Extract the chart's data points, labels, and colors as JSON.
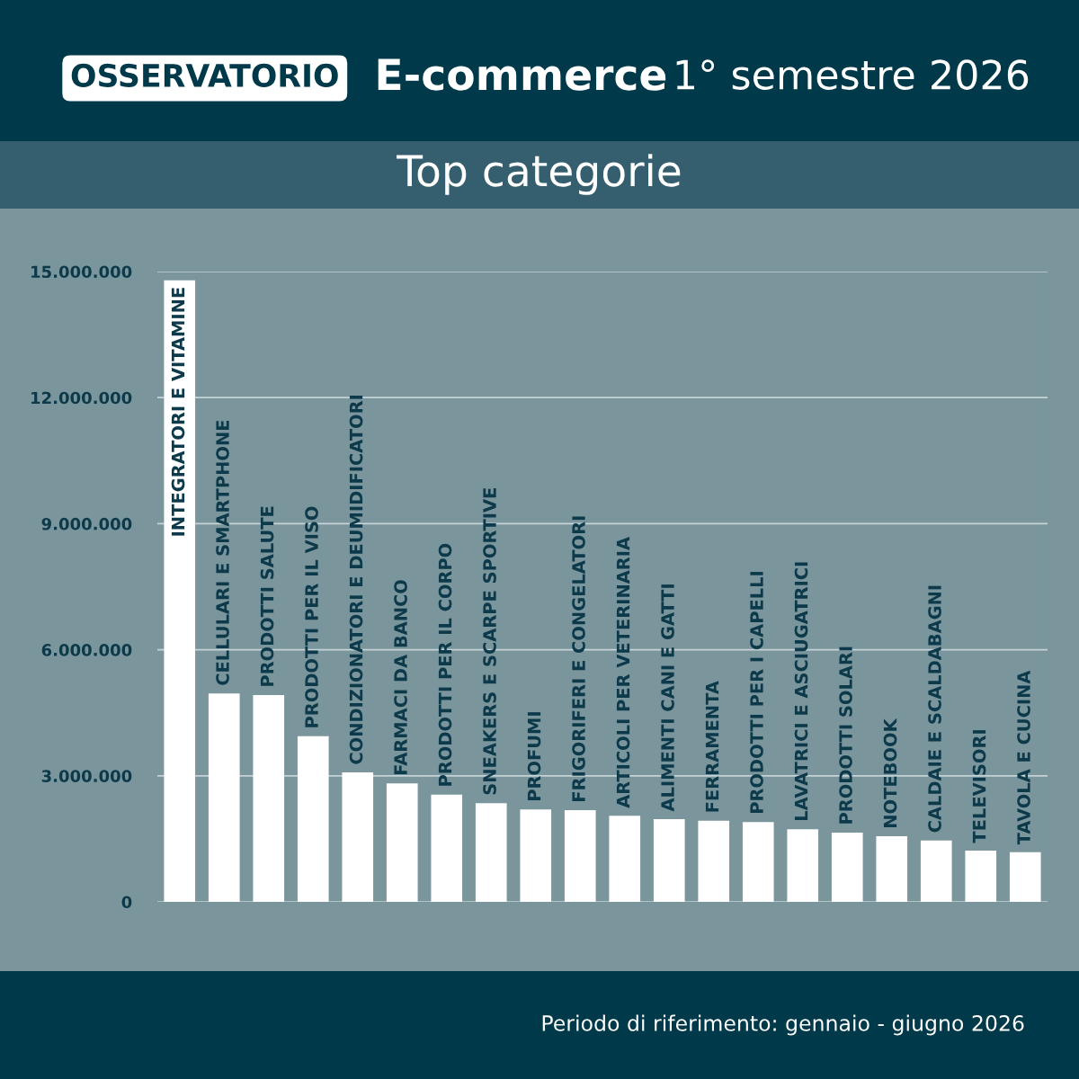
{
  "chart_data": {
    "type": "bar",
    "title": "E-commerce",
    "subtitle": "Top categorie",
    "annotations": [
      "OSSERVATORIO",
      "1° semestre 2026",
      "Periodo di riferimento: gennaio - giugno 2026"
    ],
    "categories": [
      "INTEGRATORI E VITAMINE",
      "CELLULARI E SMARTPHONE",
      "PRODOTTI SALUTE",
      "PRODOTTI PER IL VISO",
      "CONDIZIONATORI E DEUMIDIFICATORI",
      "FARMACI DA BANCO",
      "PRODOTTI PER IL CORPO",
      "SNEAKERS E SCARPE SPORTIVE",
      "PROFUMI",
      "FRIGORIFERI E CONGELATORI",
      "ARTICOLI PER VETERINARIA",
      "ALIMENTI CANI E GATTI",
      "FERRAMENTA",
      "PRODOTTI PER I CAPELLI",
      "LAVATRICI E ASCIUGATRICI",
      "PRODOTTI SOLARI",
      "NOTEBOOK",
      "CALDAIE E SCALDABAGNI",
      "TELEVISORI",
      "TAVOLA E CUCINA"
    ],
    "values": [
      14790000,
      4960000,
      4920000,
      3940000,
      3080000,
      2820000,
      2550000,
      2350000,
      2200000,
      2180000,
      2050000,
      1970000,
      1930000,
      1900000,
      1730000,
      1650000,
      1560000,
      1460000,
      1220000,
      1180000
    ],
    "color": "#ffffff",
    "ylim": [
      0,
      15000000
    ],
    "yticks": [
      0,
      {
        "value": 3000000,
        "label": "3.000.000"
      },
      {
        "value": 6000000,
        "label": "6.000.000"
      },
      {
        "value": 9000000,
        "label": "9.000.000"
      },
      {
        "value": 12000000,
        "label": "12.000.000"
      },
      {
        "value": 15000000,
        "label": "15.000.000"
      }
    ],
    "grid": "y",
    "tick_labels": "y"
  }
}
